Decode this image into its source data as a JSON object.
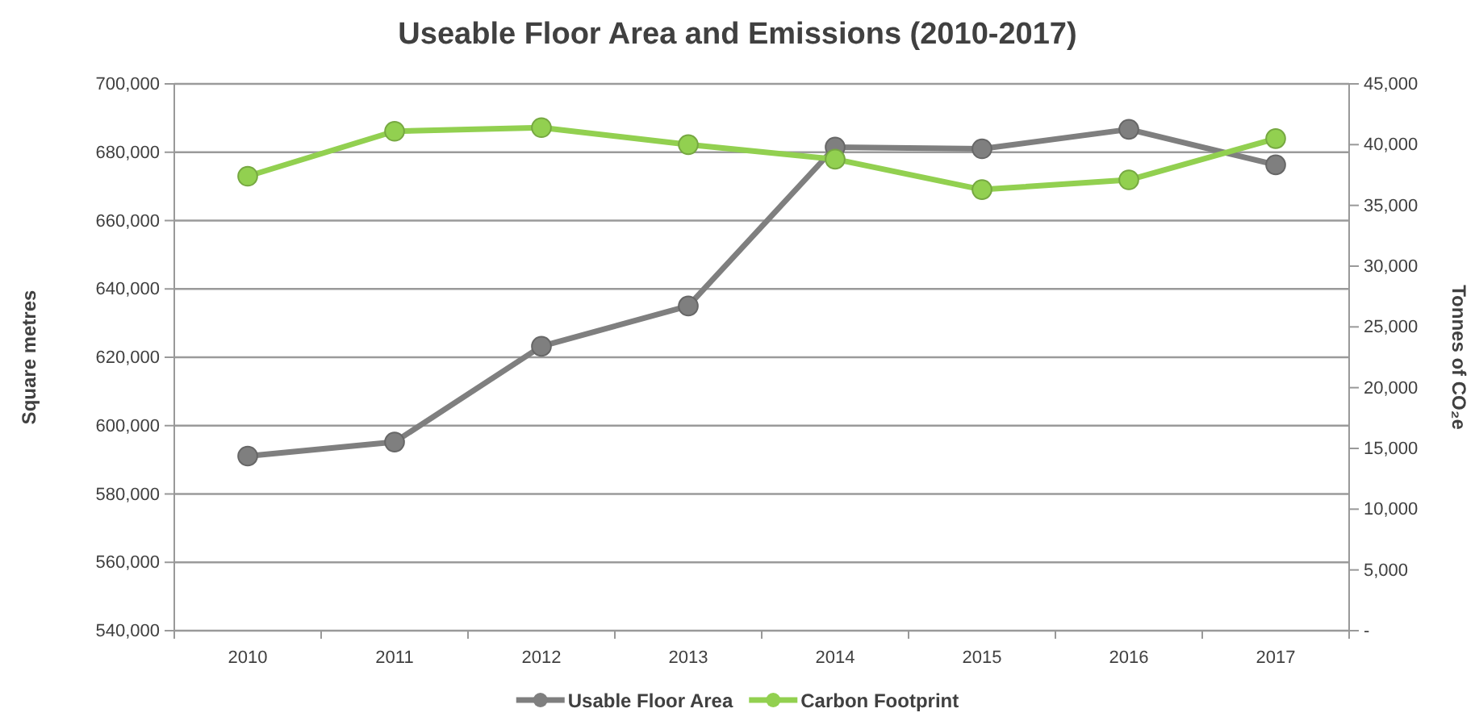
{
  "chart_data": {
    "type": "line",
    "title": "Useable Floor Area and Emissions (2010-2017)",
    "categories": [
      "2010",
      "2011",
      "2012",
      "2013",
      "2014",
      "2015",
      "2016",
      "2017"
    ],
    "series": [
      {
        "name": "Usable Floor Area",
        "color": "#7f7f7f",
        "values": [
          591100,
          595200,
          623200,
          635000,
          681500,
          681000,
          686700,
          676300
        ]
      },
      {
        "name": "Carbon Footprint",
        "color": "#92d050",
        "axis": "y2",
        "values": [
          37400,
          41100,
          41400,
          40000,
          38800,
          36300,
          37100,
          40500
        ]
      }
    ],
    "ylabel": "Square metres",
    "y2label": "Tonnes of CO₂e",
    "ylim": [
      540000,
      700000
    ],
    "yticks": [
      {
        "value": 540000,
        "label": "540,000"
      },
      {
        "value": 560000,
        "label": "560,000"
      },
      {
        "value": 580000,
        "label": "580,000"
      },
      {
        "value": 600000,
        "label": "600,000"
      },
      {
        "value": 620000,
        "label": "620,000"
      },
      {
        "value": 640000,
        "label": "640,000"
      },
      {
        "value": 660000,
        "label": "660,000"
      },
      {
        "value": 680000,
        "label": "680,000"
      },
      {
        "value": 700000,
        "label": "700,000"
      }
    ],
    "y2lim": [
      0,
      45000
    ],
    "y2ticks": [
      {
        "value": 0,
        "label": "-"
      },
      {
        "value": 5000,
        "label": "5,000"
      },
      {
        "value": 10000,
        "label": "10,000"
      },
      {
        "value": 15000,
        "label": "15,000"
      },
      {
        "value": 20000,
        "label": "20,000"
      },
      {
        "value": 25000,
        "label": "25,000"
      },
      {
        "value": 30000,
        "label": "30,000"
      },
      {
        "value": 35000,
        "label": "35,000"
      },
      {
        "value": 40000,
        "label": "40,000"
      },
      {
        "value": 45000,
        "label": "45,000"
      }
    ],
    "grid": "y",
    "legend": "bottom",
    "marker": "circle",
    "line_style": "solid"
  }
}
